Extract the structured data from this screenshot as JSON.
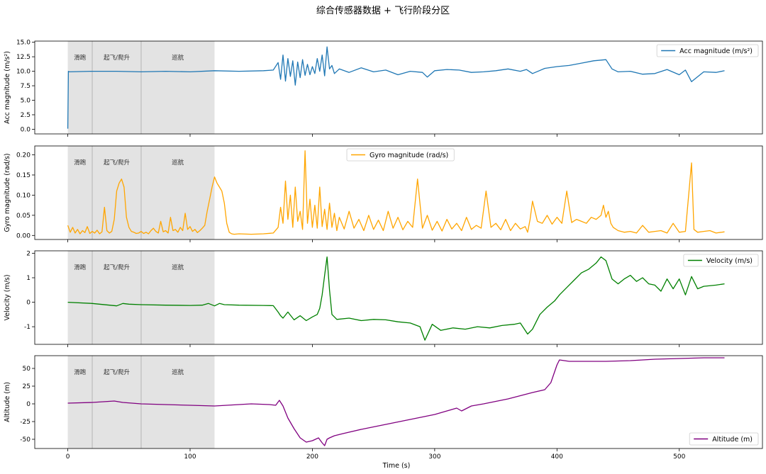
{
  "chart_data": {
    "type": "line",
    "title": "综合传感器数据 + 飞行阶段分区",
    "xlabel": "Time (s)",
    "xlim": [
      -27,
      568
    ],
    "xticks": [
      0,
      100,
      200,
      300,
      400,
      500
    ],
    "phases": [
      {
        "label": "滑跑",
        "start": 0,
        "end": 20
      },
      {
        "label": "起飞/爬升",
        "start": 20,
        "end": 60
      },
      {
        "label": "巡航",
        "start": 60,
        "end": 120
      }
    ],
    "panels": [
      {
        "ylabel": "Acc magnitude (m/s²)",
        "ylim": [
          -0.8,
          15.2
        ],
        "yticks": [
          0.0,
          2.5,
          5.0,
          7.5,
          10.0,
          12.5,
          15.0
        ],
        "tick_decimals": 1,
        "legend": {
          "label": "Acc magnitude (m/s²)",
          "position": "upper right"
        },
        "series": {
          "name": "Acc magnitude (m/s²)",
          "color": "#1f77b4",
          "x": [
            0,
            0.5,
            1,
            20,
            40,
            60,
            80,
            100,
            120,
            140,
            160,
            168,
            172,
            174,
            176,
            178,
            180,
            182,
            184,
            186,
            188,
            190,
            192,
            194,
            196,
            198,
            200,
            202,
            204,
            206,
            208,
            210,
            212,
            214,
            216,
            218,
            222,
            230,
            240,
            250,
            260,
            270,
            280,
            290,
            294,
            300,
            310,
            320,
            330,
            340,
            350,
            360,
            370,
            375,
            380,
            390,
            400,
            410,
            420,
            430,
            440,
            445,
            450,
            460,
            470,
            480,
            490,
            500,
            505,
            510,
            520,
            530,
            537
          ],
          "y": [
            0.1,
            10.0,
            9.9,
            10.0,
            10.0,
            9.9,
            10.0,
            9.9,
            10.1,
            10.0,
            10.1,
            10.2,
            11.5,
            8.6,
            12.8,
            8.3,
            12.2,
            9.1,
            11.8,
            7.6,
            11.6,
            8.9,
            12.0,
            9.3,
            11.2,
            9.4,
            10.8,
            9.6,
            12.2,
            10.0,
            12.8,
            9.2,
            14.2,
            10.4,
            11.0,
            9.6,
            10.4,
            9.8,
            10.6,
            9.9,
            10.2,
            9.4,
            10.0,
            9.8,
            9.0,
            10.1,
            10.3,
            10.2,
            9.8,
            9.9,
            10.1,
            10.4,
            10.0,
            10.3,
            9.6,
            10.5,
            10.8,
            11.0,
            11.4,
            11.8,
            12.0,
            10.4,
            9.9,
            10.0,
            9.5,
            9.6,
            10.3,
            9.4,
            10.2,
            8.2,
            9.9,
            9.8,
            10.1
          ]
        }
      },
      {
        "ylabel": "Gyro magnitude (rad/s)",
        "ylim": [
          -0.01,
          0.222
        ],
        "yticks": [
          0.0,
          0.05,
          0.1,
          0.15,
          0.2
        ],
        "tick_decimals": 2,
        "legend": {
          "label": "Gyro magnitude (rad/s)",
          "position": "upper center"
        },
        "series": {
          "name": "Gyro magnitude (rad/s)",
          "color": "#ffa500",
          "x": [
            0,
            2,
            4,
            6,
            8,
            10,
            12,
            14,
            16,
            18,
            20,
            22,
            24,
            26,
            28,
            30,
            32,
            34,
            36,
            38,
            40,
            42,
            44,
            46,
            48,
            50,
            52,
            54,
            56,
            58,
            60,
            62,
            64,
            66,
            68,
            70,
            72,
            74,
            76,
            78,
            80,
            82,
            84,
            86,
            88,
            90,
            92,
            94,
            96,
            98,
            100,
            102,
            104,
            106,
            108,
            110,
            112,
            114,
            116,
            118,
            120,
            122,
            124,
            126,
            128,
            130,
            132,
            134,
            136,
            140,
            150,
            160,
            168,
            172,
            174,
            176,
            178,
            180,
            182,
            184,
            186,
            188,
            190,
            192,
            194,
            196,
            198,
            200,
            202,
            204,
            206,
            208,
            210,
            212,
            214,
            216,
            218,
            220,
            222,
            226,
            230,
            234,
            238,
            242,
            246,
            250,
            254,
            258,
            262,
            266,
            270,
            274,
            278,
            282,
            286,
            290,
            294,
            298,
            302,
            306,
            310,
            314,
            318,
            322,
            326,
            330,
            334,
            338,
            342,
            346,
            350,
            354,
            358,
            362,
            366,
            370,
            374,
            376,
            378,
            380,
            384,
            388,
            392,
            396,
            400,
            404,
            408,
            412,
            416,
            420,
            424,
            428,
            432,
            436,
            438,
            440,
            442,
            444,
            446,
            450,
            455,
            460,
            465,
            470,
            475,
            480,
            485,
            490,
            495,
            500,
            505,
            510,
            512,
            515,
            520,
            525,
            530,
            537
          ],
          "y": [
            0.025,
            0.008,
            0.02,
            0.006,
            0.015,
            0.004,
            0.012,
            0.007,
            0.022,
            0.005,
            0.01,
            0.006,
            0.013,
            0.004,
            0.009,
            0.07,
            0.012,
            0.006,
            0.01,
            0.04,
            0.11,
            0.13,
            0.14,
            0.12,
            0.045,
            0.02,
            0.01,
            0.008,
            0.005,
            0.006,
            0.01,
            0.005,
            0.008,
            0.004,
            0.012,
            0.018,
            0.01,
            0.006,
            0.035,
            0.009,
            0.012,
            0.006,
            0.045,
            0.012,
            0.015,
            0.008,
            0.02,
            0.012,
            0.055,
            0.015,
            0.022,
            0.01,
            0.015,
            0.007,
            0.012,
            0.018,
            0.025,
            0.06,
            0.09,
            0.12,
            0.145,
            0.13,
            0.12,
            0.11,
            0.08,
            0.03,
            0.008,
            0.004,
            0.003,
            0.004,
            0.003,
            0.004,
            0.006,
            0.02,
            0.07,
            0.03,
            0.135,
            0.04,
            0.1,
            0.02,
            0.12,
            0.035,
            0.06,
            0.015,
            0.21,
            0.03,
            0.09,
            0.02,
            0.075,
            0.018,
            0.12,
            0.022,
            0.065,
            0.015,
            0.08,
            0.02,
            0.055,
            0.012,
            0.045,
            0.016,
            0.06,
            0.018,
            0.04,
            0.012,
            0.05,
            0.015,
            0.038,
            0.012,
            0.06,
            0.018,
            0.045,
            0.014,
            0.035,
            0.02,
            0.14,
            0.018,
            0.05,
            0.013,
            0.035,
            0.011,
            0.04,
            0.016,
            0.03,
            0.012,
            0.045,
            0.015,
            0.025,
            0.018,
            0.11,
            0.02,
            0.03,
            0.014,
            0.04,
            0.012,
            0.03,
            0.016,
            0.022,
            0.008,
            0.04,
            0.085,
            0.035,
            0.03,
            0.05,
            0.028,
            0.045,
            0.03,
            0.11,
            0.032,
            0.04,
            0.035,
            0.03,
            0.045,
            0.04,
            0.05,
            0.075,
            0.045,
            0.06,
            0.03,
            0.02,
            0.012,
            0.008,
            0.01,
            0.006,
            0.025,
            0.008,
            0.01,
            0.012,
            0.006,
            0.03,
            0.008,
            0.01,
            0.18,
            0.015,
            0.008,
            0.01,
            0.012,
            0.006,
            0.009
          ]
        }
      },
      {
        "ylabel": "Velocity (m/s)",
        "ylim": [
          -1.72,
          2.1
        ],
        "yticks": [
          -1,
          0,
          1,
          2
        ],
        "tick_decimals": 0,
        "legend": {
          "label": "Velocity (m/s)",
          "position": "upper right"
        },
        "series": {
          "name": "Velocity (m/s)",
          "color": "#008000",
          "x": [
            0,
            20,
            40,
            45,
            50,
            60,
            80,
            100,
            110,
            115,
            120,
            124,
            128,
            140,
            160,
            168,
            172,
            174,
            176,
            180,
            185,
            190,
            195,
            200,
            204,
            206,
            208,
            210,
            212,
            214,
            216,
            220,
            230,
            240,
            250,
            260,
            270,
            280,
            288,
            292,
            298,
            305,
            315,
            325,
            335,
            345,
            355,
            365,
            370,
            376,
            380,
            386,
            392,
            398,
            402,
            408,
            414,
            420,
            426,
            432,
            436,
            440,
            445,
            450,
            455,
            460,
            465,
            470,
            475,
            480,
            485,
            490,
            495,
            500,
            505,
            510,
            515,
            520,
            530,
            537
          ],
          "y": [
            0.0,
            -0.05,
            -0.15,
            -0.05,
            -0.08,
            -0.1,
            -0.12,
            -0.13,
            -0.12,
            -0.05,
            -0.15,
            -0.05,
            -0.1,
            -0.12,
            -0.13,
            -0.14,
            -0.4,
            -0.55,
            -0.65,
            -0.4,
            -0.72,
            -0.55,
            -0.75,
            -0.6,
            -0.5,
            -0.25,
            0.3,
            1.1,
            1.85,
            0.5,
            -0.5,
            -0.7,
            -0.65,
            -0.75,
            -0.7,
            -0.72,
            -0.8,
            -0.85,
            -1.0,
            -1.55,
            -0.9,
            -1.15,
            -1.05,
            -1.1,
            -1.0,
            -1.05,
            -0.95,
            -0.9,
            -0.85,
            -1.3,
            -1.1,
            -0.5,
            -0.2,
            0.05,
            0.3,
            0.6,
            0.9,
            1.2,
            1.35,
            1.6,
            1.85,
            1.7,
            0.95,
            0.75,
            0.95,
            1.1,
            0.85,
            1.0,
            0.75,
            0.7,
            0.45,
            0.95,
            0.55,
            0.95,
            0.3,
            1.05,
            0.55,
            0.65,
            0.7,
            0.75
          ]
        }
      },
      {
        "ylabel": "Altitude (m)",
        "ylim": [
          -63,
          68
        ],
        "yticks": [
          -50,
          -25,
          0,
          25,
          50
        ],
        "tick_decimals": 0,
        "legend": {
          "label": "Altitude (m)",
          "position": "lower right"
        },
        "series": {
          "name": "Altitude (m)",
          "color": "#800080",
          "x": [
            0,
            20,
            38,
            45,
            60,
            80,
            100,
            120,
            140,
            150,
            165,
            170,
            173,
            176,
            180,
            185,
            190,
            195,
            200,
            205,
            208,
            210,
            212,
            214,
            218,
            225,
            240,
            260,
            280,
            300,
            310,
            318,
            322,
            330,
            340,
            360,
            380,
            390,
            395,
            400,
            402,
            410,
            420,
            440,
            460,
            480,
            500,
            520,
            537
          ],
          "y": [
            1,
            2,
            4,
            2,
            0,
            -1,
            -2,
            -3,
            -1,
            0,
            -1,
            -2,
            5,
            -3,
            -20,
            -35,
            -48,
            -54,
            -52,
            -48,
            -55,
            -59,
            -50,
            -48,
            -45,
            -42,
            -36,
            -29,
            -22,
            -15,
            -10,
            -6,
            -10,
            -3,
            0,
            7,
            16,
            20,
            30,
            55,
            62,
            60,
            60,
            60,
            61,
            63,
            64,
            65,
            65
          ]
        }
      }
    ]
  }
}
